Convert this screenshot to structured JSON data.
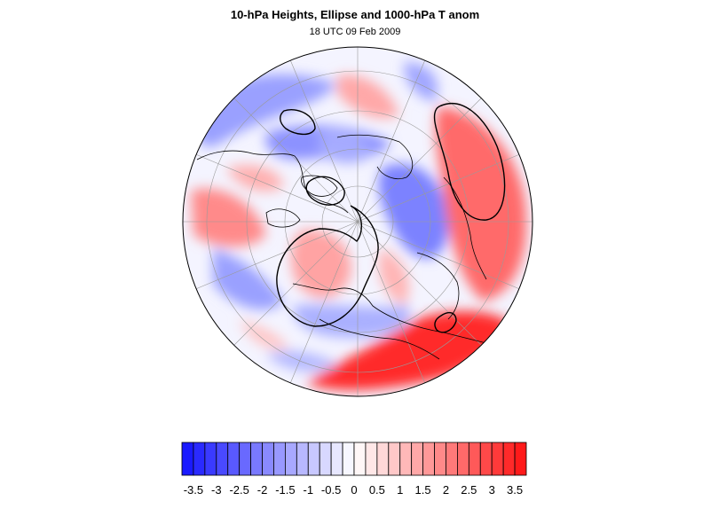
{
  "figure": {
    "title": "10-hPa Heights, Ellipse and 1000-hPa T anom",
    "subtitle": "18 UTC 09 Feb 2009"
  },
  "colorbar": {
    "min": -3.75,
    "max": 3.75,
    "step": 0.25,
    "tick_labels": [
      "-3.5",
      "-3",
      "-2.5",
      "-2",
      "-1.5",
      "-1",
      "-0.5",
      "0",
      "0.5",
      "1",
      "1.5",
      "2",
      "2.5",
      "3",
      "3.5"
    ],
    "color_low": "#1a1aff",
    "color_mid": "#ffffff",
    "color_high": "#ff1a1a"
  },
  "map": {
    "projection": "polar stereographic",
    "ocean_color": "#ffffff",
    "contour_color": "#000000"
  }
}
